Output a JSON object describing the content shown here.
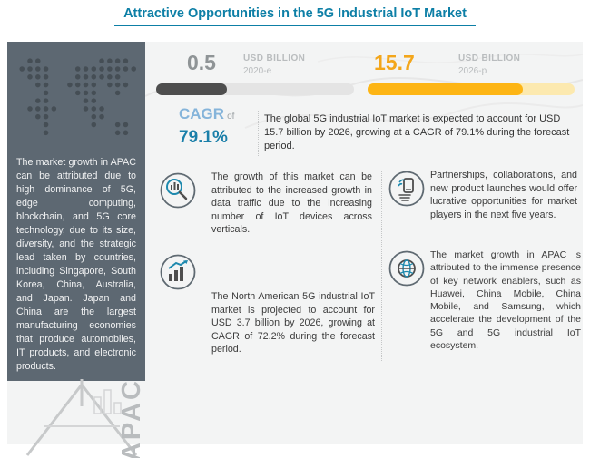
{
  "title": "Attractive Opportunities in the 5G Industrial IoT Market",
  "colors": {
    "accent_teal": "#0d7fa6",
    "accent_yellow": "#fdb515",
    "panel_slate": "#5d6872",
    "bar_gray": "#4e4e4e",
    "cagr_blue": "#85b4da"
  },
  "left_panel": {
    "text": "The market growth in APAC can be attributed due to high dominance of 5G, edge computing, blockchain, and 5G core technology, due to its size, diversity, and the strategic lead taken by countries, including Singapore, South Korea, China, Australia, and Japan. Japan and China are the largest manufacturing economies that produce automobiles, IT products, and electronic products.",
    "watermark": "APAC",
    "map_icon": "world-map-dots"
  },
  "stats": {
    "current": {
      "value": "0.5",
      "unit": "USD BILLION",
      "year": "2020-e",
      "fill_pct": 36
    },
    "future": {
      "value": "15.7",
      "unit": "USD BILLION",
      "year": "2026-p",
      "fill_pct": 75
    },
    "cagr": {
      "label": "CAGR",
      "connector": "of",
      "value": "79.1%"
    },
    "summary": "The global 5G industrial IoT market is expected to account for USD 15.7 billion by 2026, growing at a CAGR of 79.1% during the forecast period."
  },
  "insights": [
    {
      "icon": "search-chart-icon",
      "text": "The growth of this market can be attributed to the increased growth in data traffic due to the increasing number of IoT devices across verticals."
    },
    {
      "icon": "growth-chart-icon",
      "text": "The North American 5G industrial IoT market is projected to account for USD 3.7 billion by 2026, growing at CAGR of 72.2% during the forecast period."
    },
    {
      "icon": "partnership-icon",
      "text": "Partnerships, collaborations, and new product launches would offer lucrative opportunities for market players in the next five years."
    },
    {
      "icon": "globe-icon",
      "text": "The market growth in APAC is attributed to the immense presence of key network enablers, such as Huawei, China Mobile, China Mobile, and Samsung, which accelerate the development of the 5G and 5G industrial IoT ecosystem."
    }
  ]
}
